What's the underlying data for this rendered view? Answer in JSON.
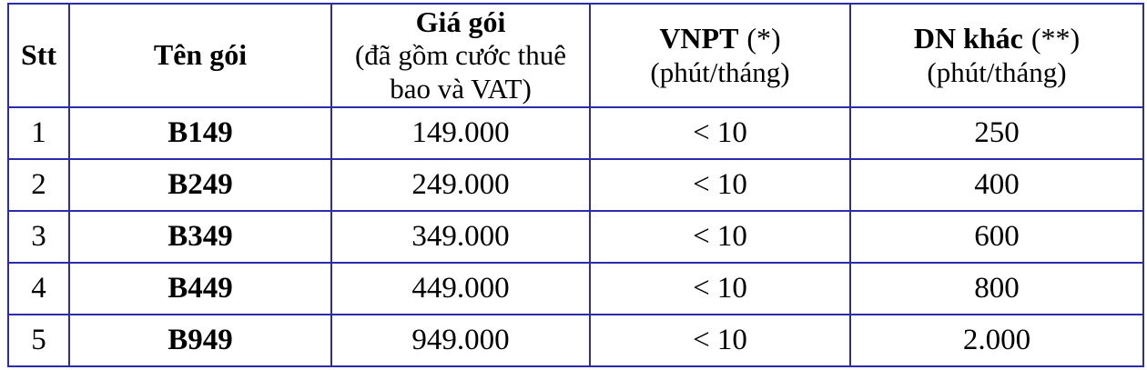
{
  "table": {
    "border_color": "#2b2bab",
    "text_color": "#000000",
    "background_color": "#ffffff",
    "columns": [
      {
        "name": "Stt",
        "note": "",
        "sub": ""
      },
      {
        "name": "Tên gói",
        "note": "",
        "sub": ""
      },
      {
        "name": "Giá gói",
        "note": "",
        "sub": "(đã gồm cước thuê bao và VAT)"
      },
      {
        "name": "VNPT",
        "note": "(*)",
        "sub": "(phút/tháng)"
      },
      {
        "name": "DN khác",
        "note": "(**)",
        "sub": "(phút/tháng)"
      }
    ],
    "rows": [
      {
        "stt": "1",
        "name": "B149",
        "price": "149.000",
        "vnpt": "< 10",
        "other": "250"
      },
      {
        "stt": "2",
        "name": "B249",
        "price": "249.000",
        "vnpt": "< 10",
        "other": "400"
      },
      {
        "stt": "3",
        "name": "B349",
        "price": "349.000",
        "vnpt": "< 10",
        "other": "600"
      },
      {
        "stt": "4",
        "name": "B449",
        "price": "449.000",
        "vnpt": "< 10",
        "other": "800"
      },
      {
        "stt": "5",
        "name": "B949",
        "price": "949.000",
        "vnpt": "< 10",
        "other": "2.000"
      }
    ]
  }
}
